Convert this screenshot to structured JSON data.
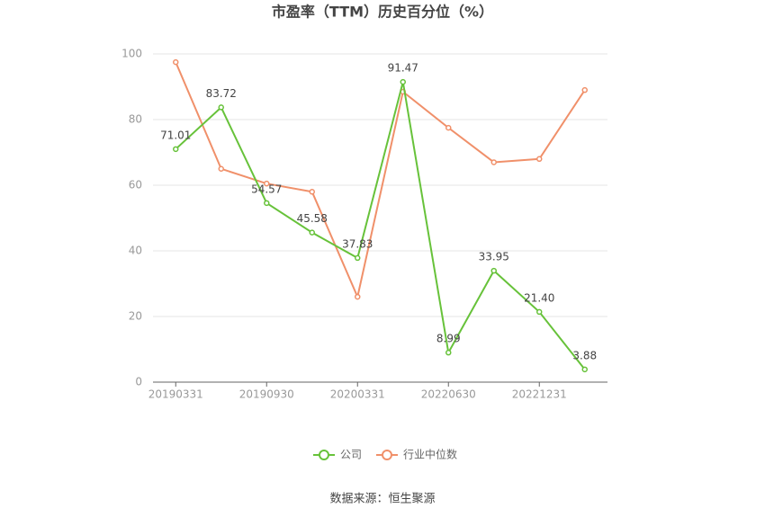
{
  "chart_data": {
    "type": "line",
    "title": "市盈率（TTM）历史百分位（%）",
    "categories": [
      "20190331",
      null,
      "20190930",
      null,
      "20200331",
      null,
      "20220630",
      null,
      "20221231",
      null
    ],
    "series": [
      {
        "name": "公司",
        "color": "#67c23a",
        "values": [
          71.01,
          83.72,
          54.57,
          45.58,
          37.83,
          91.47,
          8.99,
          33.95,
          21.4,
          3.88
        ],
        "value_labels": [
          "71.01",
          "83.72",
          "54.57",
          "45.58",
          "37.83",
          "91.47",
          "8.99",
          "33.95",
          "21.40",
          "3.88"
        ]
      },
      {
        "name": "行业中位数",
        "color": "#f0906a",
        "values": [
          97.5,
          65,
          60.5,
          58,
          26,
          88.5,
          77.5,
          67,
          68,
          89
        ]
      }
    ],
    "ylim": [
      0,
      100
    ],
    "yticks": [
      0,
      20,
      40,
      60,
      80,
      100
    ],
    "grid": true,
    "legend": "bottom",
    "source": "数据来源：恒生聚源"
  }
}
